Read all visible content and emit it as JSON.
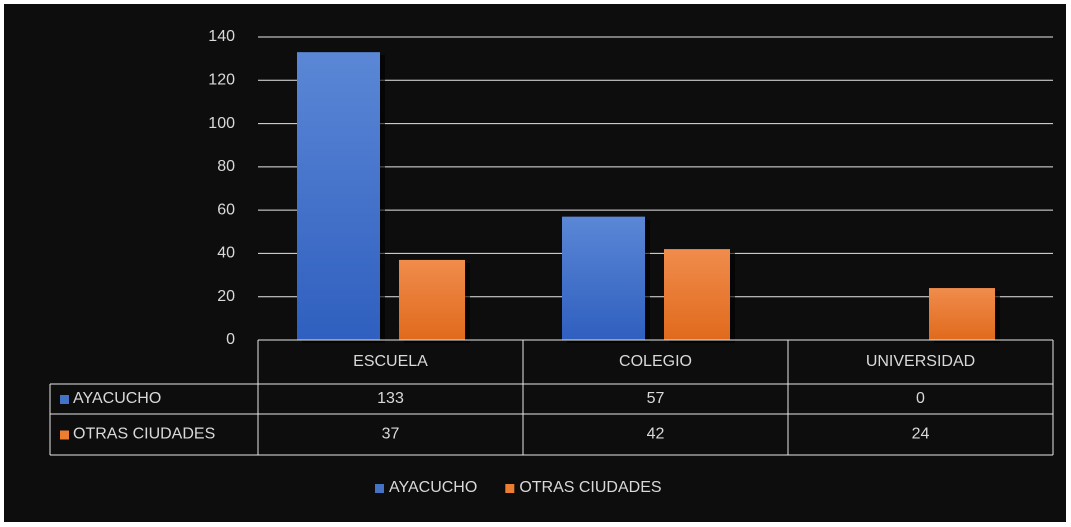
{
  "chart_data": {
    "type": "bar",
    "categories": [
      "ESCUELA",
      "COLEGIO",
      "UNIVERSIDAD"
    ],
    "series": [
      {
        "name": "AYACUCHO",
        "color": "#4472c4",
        "values": [
          133,
          57,
          0
        ]
      },
      {
        "name": "OTRAS CIUDADES",
        "color": "#ed7d31",
        "values": [
          37,
          42,
          24
        ]
      }
    ],
    "ylim": [
      0,
      140
    ],
    "yticks": [
      0,
      20,
      40,
      60,
      80,
      100,
      120,
      140
    ],
    "grid": true,
    "legend": "bottom",
    "data_table": true
  }
}
